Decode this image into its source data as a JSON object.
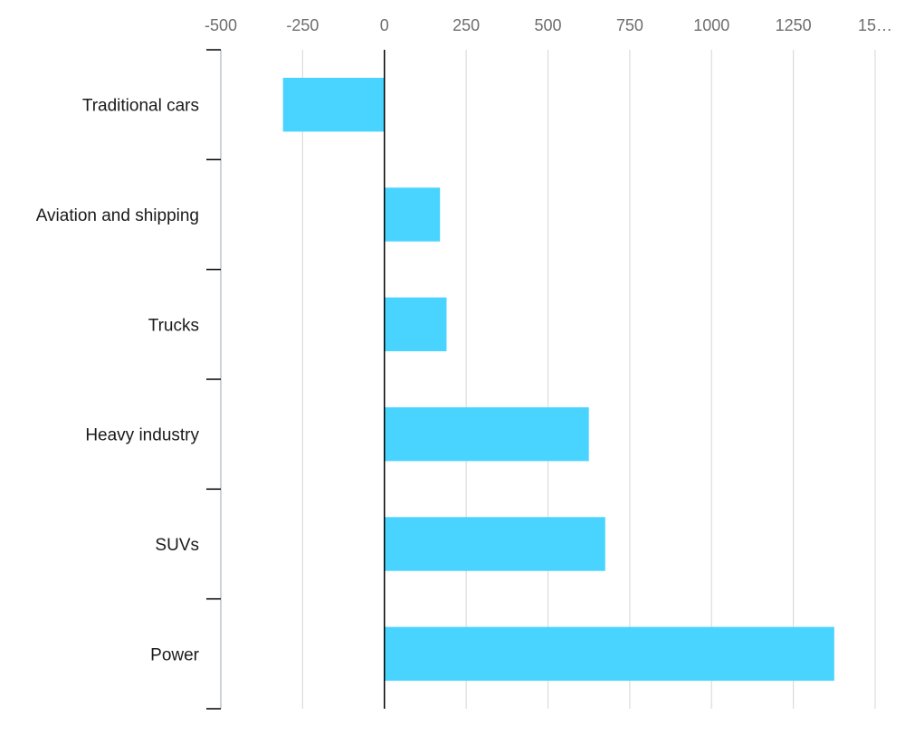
{
  "chart_data": {
    "type": "bar",
    "orientation": "horizontal",
    "title": "",
    "xlabel": "",
    "ylabel": "",
    "categories": [
      "Traditional cars",
      "Aviation and shipping",
      "Trucks",
      "Heavy industry",
      "SUVs",
      "Power"
    ],
    "values": [
      -310,
      170,
      190,
      625,
      675,
      1375
    ],
    "x_ticks": [
      "-500",
      "-250",
      "0",
      "250",
      "500",
      "750",
      "1000",
      "1250",
      "15…"
    ],
    "x_tick_values": [
      -500,
      -250,
      0,
      250,
      500,
      750,
      1000,
      1250,
      1500
    ],
    "xlim": [
      -500,
      1500
    ],
    "grid": "vertical",
    "axis_position": "top",
    "legend": "none",
    "colors": {
      "bar": "#48d4fe",
      "grid": "#dcdcdc",
      "zero_line": "#000000",
      "axis": "#bcc7ce",
      "tick_text": "#6e6e6e",
      "category_text": "#1a1a1a"
    }
  }
}
